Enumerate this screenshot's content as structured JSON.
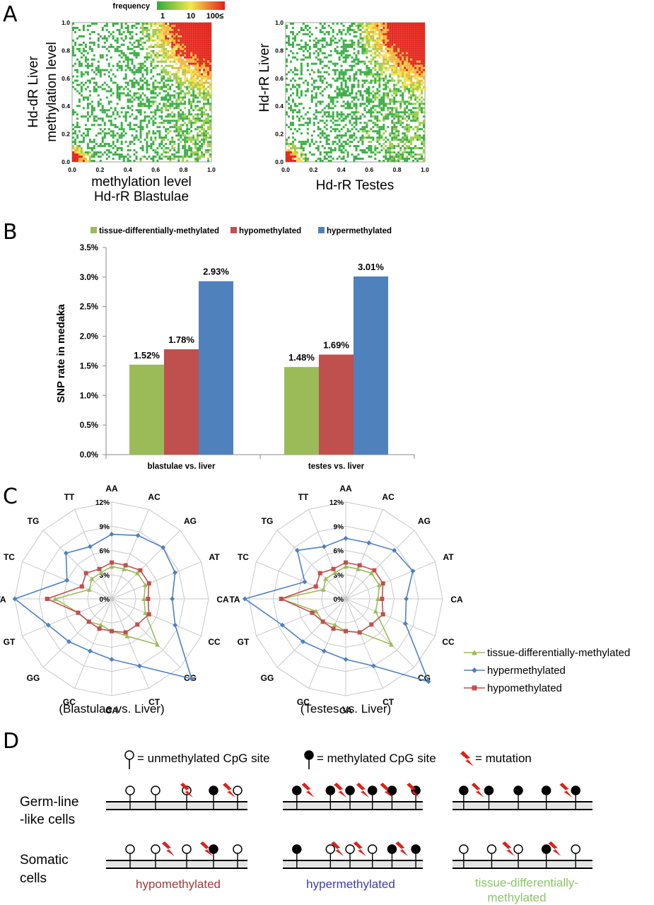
{
  "panels": {
    "A": {
      "letter": "A",
      "colorbar": {
        "title": "frequency",
        "ticks": [
          "1",
          "10",
          "100≤"
        ],
        "colors": [
          "#2faa3a",
          "#f5e84a",
          "#e3201b"
        ]
      },
      "left": {
        "ylabel_line1": "Hd-dR Liver",
        "ylabel_line2": "methylation level",
        "xlabel_line1": "methylation level",
        "xlabel_line2": "Hd-rR Blastulae",
        "ticks": [
          "0.0",
          "0.2",
          "0.4",
          "0.6",
          "0.8",
          "1.0"
        ]
      },
      "right": {
        "ylabel_line1": "Hd-rR Liver",
        "xlabel_line1": "Hd-rR Testes",
        "ticks": [
          "0.0",
          "0.2",
          "0.4",
          "0.6",
          "0.8",
          "1.0"
        ]
      }
    },
    "B": {
      "letter": "B"
    },
    "C": {
      "letter": "C"
    },
    "D": {
      "letter": "D",
      "legend": {
        "unmethylated": "= unmethylated CpG site",
        "methylated": "= methylated CpG site",
        "mutation": "= mutation"
      },
      "rows": {
        "germ_line1": "Germ-line",
        "germ_line2": "-like cells",
        "somatic_line1": "Somatic",
        "somatic_line2": "cells"
      },
      "columns": {
        "hypo": "hypomethylated",
        "hyper": "hypermethylated",
        "tdm_line1": "tissue-differentially-",
        "tdm_line2": "methylated"
      },
      "colors": {
        "hypo": "#a33a3a",
        "hyper": "#3b3fa8",
        "tdm": "#8cc56a",
        "mutation": "#d9231c"
      },
      "patterns": {
        "germ": [
          [
            "u",
            "u",
            "m",
            "u"
          ],
          [
            "m",
            "m",
            "m",
            "m"
          ],
          [
            "m",
            "m",
            "m",
            "m"
          ]
        ],
        "somatic": [
          [
            "u",
            "u",
            "u",
            "u"
          ],
          [
            "m",
            "u",
            "u",
            "u"
          ],
          [
            "u",
            "u",
            "u",
            "u"
          ]
        ]
      }
    }
  },
  "chart_data": [
    {
      "type": "heatmap",
      "panel": "A-left",
      "xlabel": "methylation level Hd-rR Blastulae",
      "ylabel": "Hd-dR Liver methylation level",
      "xlim": [
        0,
        1
      ],
      "ylim": [
        0,
        1
      ],
      "color_legend": "frequency"
    },
    {
      "type": "heatmap",
      "panel": "A-right",
      "xlabel": "Hd-rR Testes",
      "ylabel": "Hd-rR Liver",
      "xlim": [
        0,
        1
      ],
      "ylim": [
        0,
        1
      ],
      "color_legend": "frequency"
    },
    {
      "type": "bar",
      "panel": "B",
      "ylabel": "SNP rate in medaka",
      "categories": [
        "blastulae vs. liver",
        "testes vs. liver"
      ],
      "ylim": [
        0,
        3.5
      ],
      "yticks": [
        "0.0%",
        "0.5%",
        "1.0%",
        "1.5%",
        "2.0%",
        "2.5%",
        "3.0%",
        "3.5%"
      ],
      "legend_position": "top",
      "series": [
        {
          "name": "tissue-differentially-methylated",
          "color": "#9bbb59",
          "values": [
            1.52,
            1.48
          ],
          "labels": [
            "1.52%",
            "1.48%"
          ]
        },
        {
          "name": "hypomethylated",
          "color": "#c0504d",
          "values": [
            1.78,
            1.69
          ],
          "labels": [
            "1.78%",
            "1.69%"
          ]
        },
        {
          "name": "hypermethylated",
          "color": "#4f81bd",
          "values": [
            2.93,
            3.01
          ],
          "labels": [
            "2.93%",
            "3.01%"
          ]
        }
      ]
    },
    {
      "type": "radar",
      "panel": "C",
      "axes": [
        "AA",
        "AC",
        "AG",
        "AT",
        "CA",
        "CC",
        "CG",
        "CT",
        "GA",
        "GC",
        "GG",
        "GT",
        "TA",
        "TC",
        "TG",
        "TT"
      ],
      "rlim": [
        0,
        12
      ],
      "rticks": [
        "0%",
        "3%",
        "6%",
        "9%",
        "12%"
      ],
      "legend": [
        "tissue-differentially-methylated",
        "hypermethylated",
        "hypomethylated"
      ],
      "charts": [
        {
          "title": "(Blastulae vs. Liver)",
          "series": [
            {
              "name": "tissue-differentially-methylated",
              "color": "#9bbb59",
              "marker": "triangle",
              "values": [
                4.0,
                4.0,
                4.5,
                4.5,
                4.0,
                4.5,
                8.0,
                5.0,
                4.0,
                3.5,
                4.0,
                4.5,
                7.0,
                3.0,
                3.5,
                3.5
              ]
            },
            {
              "name": "hypermethylated",
              "color": "#4f81bd",
              "marker": "diamond",
              "values": [
                8.0,
                8.5,
                9.0,
                8.5,
                7.5,
                8.5,
                14.0,
                9.0,
                7.5,
                7.0,
                7.5,
                8.5,
                12.0,
                6.0,
                8.0,
                7.0
              ]
            },
            {
              "name": "hypomethylated",
              "color": "#c0504d",
              "marker": "square",
              "values": [
                4.5,
                4.5,
                5.0,
                5.0,
                4.5,
                5.0,
                4.5,
                4.5,
                4.0,
                4.0,
                4.0,
                4.5,
                8.0,
                4.0,
                4.5,
                4.0
              ]
            }
          ]
        },
        {
          "title": "(Testes vs. Liver)",
          "series": [
            {
              "name": "tissue-differentially-methylated",
              "color": "#9bbb59",
              "marker": "triangle",
              "values": [
                4.0,
                4.0,
                4.5,
                4.5,
                4.0,
                4.0,
                8.0,
                4.5,
                4.0,
                3.5,
                4.0,
                4.0,
                8.0,
                3.0,
                3.5,
                3.5
              ]
            },
            {
              "name": "hypermethylated",
              "color": "#4f81bd",
              "marker": "diamond",
              "values": [
                7.5,
                7.5,
                8.5,
                9.0,
                7.5,
                8.0,
                14.5,
                9.0,
                7.5,
                7.0,
                7.5,
                8.5,
                12.5,
                5.5,
                8.5,
                7.0
              ]
            },
            {
              "name": "hypomethylated",
              "color": "#c0504d",
              "marker": "square",
              "values": [
                4.5,
                4.5,
                5.0,
                5.0,
                4.5,
                5.0,
                4.5,
                4.5,
                4.0,
                4.0,
                4.0,
                4.5,
                8.0,
                4.0,
                4.5,
                4.0
              ]
            }
          ]
        }
      ]
    }
  ]
}
